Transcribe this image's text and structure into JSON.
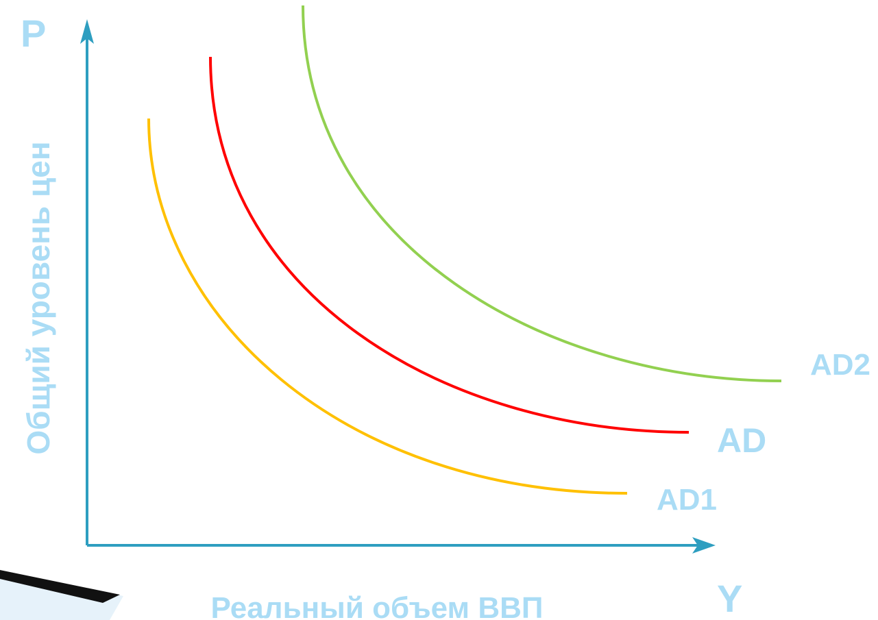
{
  "axes": {
    "y_symbol": "P",
    "x_symbol": "Y",
    "y_label": "Общий уровень цен",
    "x_label": "Реальный объем ВВП"
  },
  "curves": [
    {
      "label": "AD1",
      "color": "#ffc000"
    },
    {
      "label": "AD",
      "color": "#ff0000"
    },
    {
      "label": "AD2",
      "color": "#92d050"
    }
  ]
}
